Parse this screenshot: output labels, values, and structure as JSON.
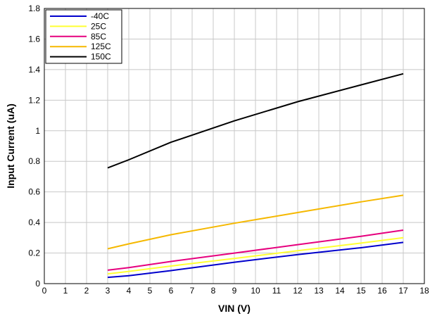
{
  "chart_data": {
    "type": "line",
    "title": "",
    "xlabel": "VIN (V)",
    "ylabel": "Input Current (uA)",
    "xlim": [
      0,
      18
    ],
    "ylim": [
      0,
      1.8
    ],
    "xticks": [
      0,
      1,
      2,
      3,
      4,
      5,
      6,
      7,
      8,
      9,
      10,
      11,
      12,
      13,
      14,
      15,
      16,
      17,
      18
    ],
    "yticks": [
      0,
      0.2,
      0.4,
      0.6,
      0.8,
      1,
      1.2,
      1.4,
      1.6,
      1.8
    ],
    "ytick_labels": [
      "0",
      "0.2",
      "0.4",
      "0.6",
      "0.8",
      "1",
      "1.2",
      "1.4",
      "1.6",
      "1.8"
    ],
    "grid": true,
    "legend_position": "top-left",
    "series": [
      {
        "name": "-40C",
        "color": "#0000cc",
        "x": [
          3,
          4,
          6,
          9,
          12,
          15,
          17
        ],
        "y": [
          0.041,
          0.052,
          0.085,
          0.14,
          0.19,
          0.235,
          0.27
        ]
      },
      {
        "name": "25C",
        "color": "#ffff33",
        "x": [
          3,
          4,
          6,
          9,
          12,
          15,
          17
        ],
        "y": [
          0.064,
          0.08,
          0.115,
          0.165,
          0.215,
          0.265,
          0.3
        ]
      },
      {
        "name": "85C",
        "color": "#e6007e",
        "x": [
          3,
          4,
          6,
          9,
          12,
          15,
          17
        ],
        "y": [
          0.088,
          0.105,
          0.145,
          0.2,
          0.255,
          0.31,
          0.35
        ]
      },
      {
        "name": "125C",
        "color": "#f5b800",
        "x": [
          3,
          4,
          6,
          9,
          12,
          15,
          17
        ],
        "y": [
          0.228,
          0.26,
          0.32,
          0.395,
          0.465,
          0.535,
          0.578
        ]
      },
      {
        "name": "150C",
        "color": "#000000",
        "x": [
          3,
          4,
          6,
          9,
          12,
          15,
          17
        ],
        "y": [
          0.757,
          0.81,
          0.925,
          1.065,
          1.19,
          1.3,
          1.373
        ]
      }
    ]
  }
}
